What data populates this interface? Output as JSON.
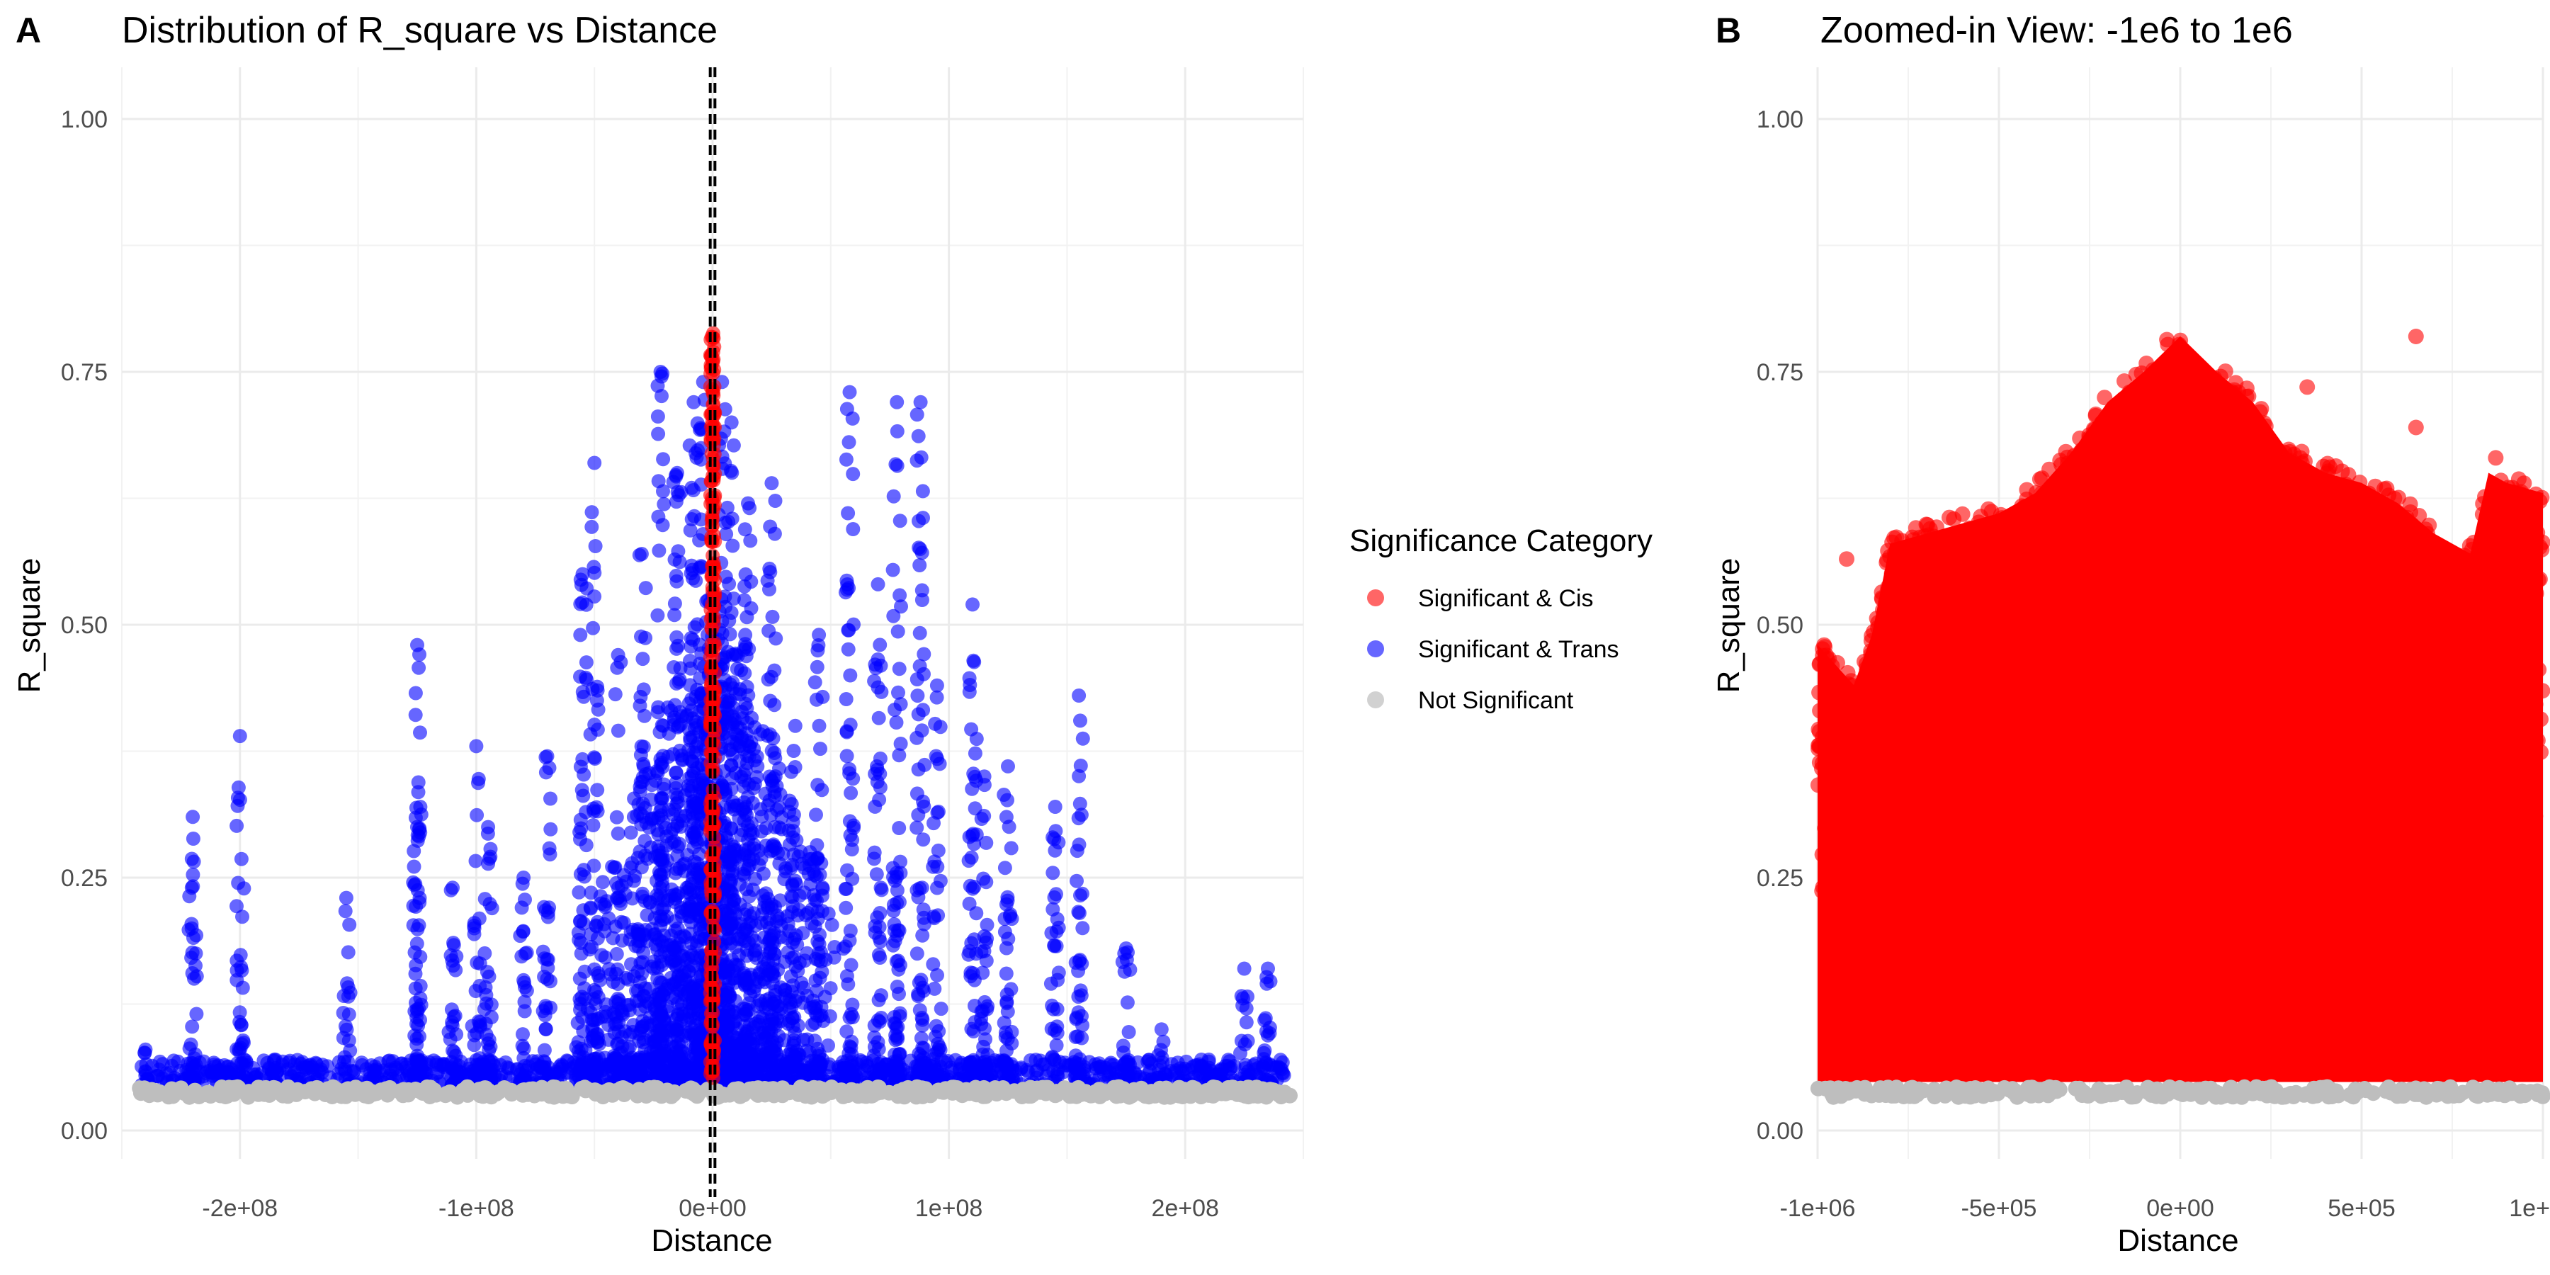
{
  "figure": {
    "panel_labels": [
      "A",
      "B"
    ],
    "legend": {
      "title": "Significance Category",
      "items": [
        {
          "label": "Significant & Cis",
          "color": "#ff0000"
        },
        {
          "label": "Significant & Trans",
          "color": "#0000ff"
        },
        {
          "label": "Not Significant",
          "color": "#bebebe"
        }
      ]
    }
  },
  "chart_data": [
    {
      "type": "scatter",
      "title": "Distribution of R_square vs Distance",
      "xlabel": "Distance",
      "ylabel": "R_square",
      "xlim": [
        -250000000,
        250000000
      ],
      "ylim": [
        0,
        1
      ],
      "x_ticks": [
        {
          "value": -200000000,
          "label": "-2e+08"
        },
        {
          "value": -100000000,
          "label": "-1e+08"
        },
        {
          "value": 0,
          "label": "0e+00"
        },
        {
          "value": 100000000,
          "label": "1e+08"
        },
        {
          "value": 200000000,
          "label": "2e+08"
        }
      ],
      "y_ticks": [
        {
          "value": 0,
          "label": "0.00"
        },
        {
          "value": 0.25,
          "label": "0.25"
        },
        {
          "value": 0.5,
          "label": "0.50"
        },
        {
          "value": 0.75,
          "label": "0.75"
        },
        {
          "value": 1,
          "label": "1.00"
        }
      ],
      "vlines": [
        {
          "x": -1000000,
          "style": "dashed",
          "color": "#000000"
        },
        {
          "x": 1000000,
          "style": "dashed",
          "color": "#000000"
        }
      ],
      "grid": true,
      "legend_position": "right",
      "series": [
        {
          "name": "Not Significant",
          "color": "#bebebe",
          "x_range": [
            -245000000,
            245000000
          ],
          "y_range": [
            0.033,
            0.043
          ]
        },
        {
          "name": "Significant & Cis",
          "color": "#ff0000",
          "x_range": [
            -1000000,
            1000000
          ],
          "y_range": [
            0.045,
            0.795
          ]
        },
        {
          "name": "Significant & Trans",
          "color": "#0000ff",
          "clusters": [
            {
              "x": -240000000,
              "ymax": 0.08
            },
            {
              "x": -220000000,
              "ymax": 0.31
            },
            {
              "x": -200000000,
              "ymax": 0.39
            },
            {
              "x": -185000000,
              "ymax": 0.07
            },
            {
              "x": -155000000,
              "ymax": 0.23
            },
            {
              "x": -125000000,
              "ymax": 0.3
            },
            {
              "x": -110000000,
              "ymax": 0.24
            },
            {
              "x": -100000000,
              "ymax": 0.38
            },
            {
              "x": -125000000,
              "ymax": 0.48
            },
            {
              "x": -95000000,
              "ymax": 0.3
            },
            {
              "x": -80000000,
              "ymax": 0.25
            },
            {
              "x": -70000000,
              "ymax": 0.37
            },
            {
              "x": -55000000,
              "ymax": 0.55
            },
            {
              "x": -50000000,
              "ymax": 0.66
            },
            {
              "x": -40000000,
              "ymax": 0.47
            },
            {
              "x": -30000000,
              "ymax": 0.57
            },
            {
              "x": -22000000,
              "ymax": 0.75
            },
            {
              "x": -15000000,
              "ymax": 0.65
            },
            {
              "x": -8000000,
              "ymax": 0.72
            },
            {
              "x": -4000000,
              "ymax": 0.74
            },
            {
              "x": 4000000,
              "ymax": 0.74
            },
            {
              "x": 8000000,
              "ymax": 0.7
            },
            {
              "x": 15000000,
              "ymax": 0.62
            },
            {
              "x": 25000000,
              "ymax": 0.64
            },
            {
              "x": 35000000,
              "ymax": 0.4
            },
            {
              "x": 45000000,
              "ymax": 0.49
            },
            {
              "x": 58000000,
              "ymax": 0.73
            },
            {
              "x": 70000000,
              "ymax": 0.54
            },
            {
              "x": 78000000,
              "ymax": 0.72
            },
            {
              "x": 88000000,
              "ymax": 0.72
            },
            {
              "x": 95000000,
              "ymax": 0.44
            },
            {
              "x": 110000000,
              "ymax": 0.52
            },
            {
              "x": 115000000,
              "ymax": 0.35
            },
            {
              "x": 125000000,
              "ymax": 0.36
            },
            {
              "x": 145000000,
              "ymax": 0.32
            },
            {
              "x": 155000000,
              "ymax": 0.43
            },
            {
              "x": 175000000,
              "ymax": 0.18
            },
            {
              "x": 190000000,
              "ymax": 0.1
            },
            {
              "x": 210000000,
              "ymax": 0.07
            },
            {
              "x": 225000000,
              "ymax": 0.16
            },
            {
              "x": 235000000,
              "ymax": 0.16
            }
          ]
        }
      ]
    },
    {
      "type": "scatter",
      "title": "Zoomed-in View: -1e6 to 1e6",
      "xlabel": "Distance",
      "ylabel": "R_square",
      "xlim": [
        -1000000,
        1000000
      ],
      "ylim": [
        0,
        1
      ],
      "x_ticks": [
        {
          "value": -1000000,
          "label": "-1e+06"
        },
        {
          "value": -500000,
          "label": "-5e+05"
        },
        {
          "value": 0,
          "label": "0e+00"
        },
        {
          "value": 500000,
          "label": "5e+05"
        },
        {
          "value": 1000000,
          "label": "1e+06"
        }
      ],
      "y_ticks": [
        {
          "value": 0,
          "label": "0.00"
        },
        {
          "value": 0.25,
          "label": "0.25"
        },
        {
          "value": 0.5,
          "label": "0.50"
        },
        {
          "value": 0.75,
          "label": "0.75"
        },
        {
          "value": 1,
          "label": "1.00"
        }
      ],
      "grid": true,
      "series": [
        {
          "name": "Not Significant",
          "color": "#bebebe",
          "x_range": [
            -1000000,
            1000000
          ],
          "y_range": [
            0.033,
            0.043
          ]
        },
        {
          "name": "Significant & Cis",
          "color": "#ff0000",
          "envelope": [
            {
              "x": -1000000,
              "y": 0.49
            },
            {
              "x": -900000,
              "y": 0.45
            },
            {
              "x": -850000,
              "y": 0.5
            },
            {
              "x": -800000,
              "y": 0.59
            },
            {
              "x": -700000,
              "y": 0.6
            },
            {
              "x": -600000,
              "y": 0.61
            },
            {
              "x": -500000,
              "y": 0.62
            },
            {
              "x": -400000,
              "y": 0.64
            },
            {
              "x": -300000,
              "y": 0.68
            },
            {
              "x": -200000,
              "y": 0.73
            },
            {
              "x": -100000,
              "y": 0.76
            },
            {
              "x": 0,
              "y": 0.795
            },
            {
              "x": 100000,
              "y": 0.76
            },
            {
              "x": 200000,
              "y": 0.73
            },
            {
              "x": 300000,
              "y": 0.68
            },
            {
              "x": 400000,
              "y": 0.66
            },
            {
              "x": 500000,
              "y": 0.65
            },
            {
              "x": 600000,
              "y": 0.63
            },
            {
              "x": 700000,
              "y": 0.6
            },
            {
              "x": 800000,
              "y": 0.58
            },
            {
              "x": 850000,
              "y": 0.66
            },
            {
              "x": 900000,
              "y": 0.65
            },
            {
              "x": 1000000,
              "y": 0.64
            }
          ],
          "outliers": [
            {
              "x": -920000,
              "y": 0.565
            },
            {
              "x": 650000,
              "y": 0.785
            },
            {
              "x": 650000,
              "y": 0.695
            },
            {
              "x": 350000,
              "y": 0.735
            },
            {
              "x": 870000,
              "y": 0.665
            }
          ]
        }
      ]
    }
  ]
}
